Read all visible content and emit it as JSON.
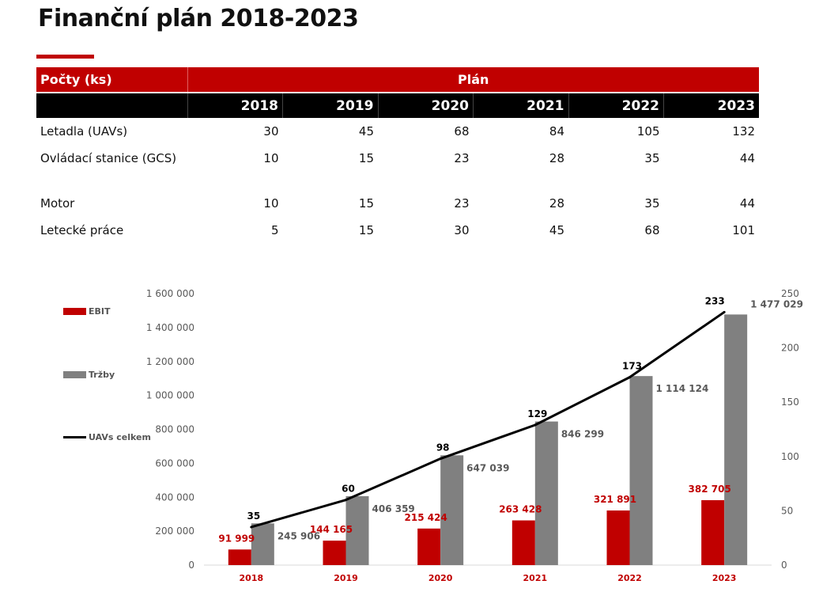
{
  "title": "Finanční plán 2018-2023",
  "table": {
    "header_left": "Počty (ks)",
    "header_plan": "Plán",
    "years": [
      "2018",
      "2019",
      "2020",
      "2021",
      "2022",
      "2023"
    ],
    "rows": [
      {
        "label": "Letadla (UAVs)",
        "values": [
          "30",
          "45",
          "68",
          "84",
          "105",
          "132"
        ]
      },
      {
        "label": "Ovládací stanice (GCS)",
        "values": [
          "10",
          "15",
          "23",
          "28",
          "35",
          "44"
        ]
      },
      {
        "label": "Motor",
        "values": [
          "10",
          "15",
          "23",
          "28",
          "35",
          "44"
        ]
      },
      {
        "label": "Letecké práce",
        "values": [
          "5",
          "15",
          "30",
          "45",
          "68",
          "101"
        ]
      }
    ]
  },
  "chart_data": {
    "type": "bar",
    "categories": [
      "2018",
      "2019",
      "2020",
      "2021",
      "2022",
      "2023"
    ],
    "series": [
      {
        "name": "EBIT",
        "type": "bar",
        "axis": "left",
        "color": "#c00000",
        "values": [
          91999,
          144165,
          215424,
          263428,
          321891,
          382705
        ],
        "labels": [
          "91 999",
          "144 165",
          "215 424",
          "263 428",
          "321 891",
          "382 705"
        ]
      },
      {
        "name": "Tržby",
        "type": "bar",
        "axis": "left",
        "color": "#808080",
        "values": [
          245906,
          406359,
          647039,
          846299,
          1114124,
          1477029
        ],
        "labels": [
          "245 906",
          "406 359",
          "647 039",
          "846 299",
          "1 114 124",
          "1 477 029"
        ]
      },
      {
        "name": "UAVs celkem",
        "type": "line",
        "axis": "right",
        "color": "#000000",
        "values": [
          35,
          60,
          98,
          129,
          173,
          233
        ],
        "labels": [
          "35",
          "60",
          "98",
          "129",
          "173",
          "233"
        ]
      }
    ],
    "y_left": {
      "min": 0,
      "max": 1600000,
      "ticks": [
        0,
        200000,
        400000,
        600000,
        800000,
        1000000,
        1200000,
        1400000,
        1600000
      ],
      "tick_labels": [
        "0",
        "200 000",
        "400 000",
        "600 000",
        "800 000",
        "1 000 000",
        "1 200 000",
        "1 400 000",
        "1 600 000"
      ]
    },
    "y_right": {
      "min": 0,
      "max": 250,
      "ticks": [
        0,
        50,
        100,
        150,
        200,
        250
      ],
      "tick_labels": [
        "0",
        "50",
        "100",
        "150",
        "200",
        "250"
      ]
    },
    "grid": false,
    "legend_position": "left"
  }
}
